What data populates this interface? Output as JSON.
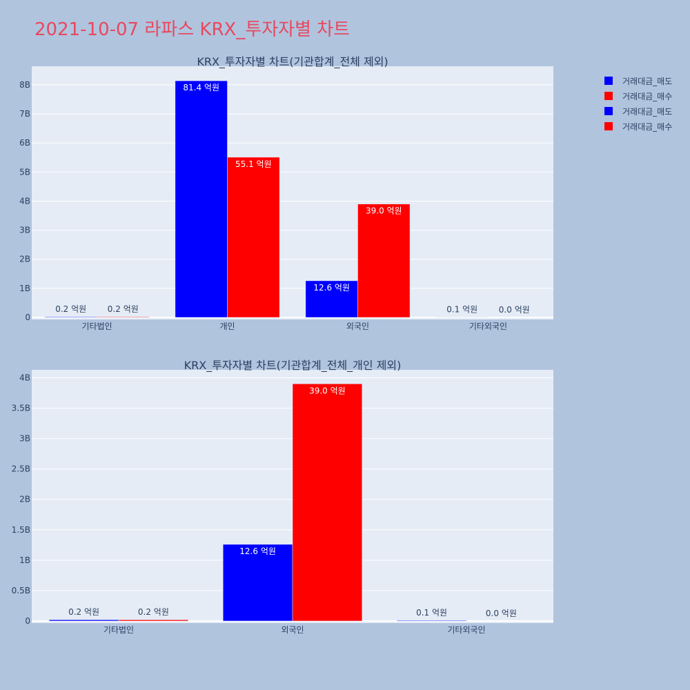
{
  "page_title": "2021-10-07 라파스 KRX_투자자별 차트",
  "colors": {
    "background": "#b0c4de",
    "plot_bg": "#e5ecf6",
    "title": "#e8485f",
    "sell": "#0000ff",
    "buy": "#ff0000",
    "text": "#2a3f5f"
  },
  "legend": [
    {
      "name": "거래대금_매도",
      "color": "#0000ff"
    },
    {
      "name": "거래대금_매수",
      "color": "#ff0000"
    },
    {
      "name": "거래대금_매도",
      "color": "#0000ff"
    },
    {
      "name": "거래대금_매수",
      "color": "#ff0000"
    }
  ],
  "chart_data": [
    {
      "type": "bar",
      "title": "KRX_투자자별 차트(기관합계_전체 제외)",
      "categories": [
        "기타법인",
        "개인",
        "외국인",
        "기타외국인"
      ],
      "ylim": [
        0,
        8640000000
      ],
      "ytick_values": [
        0,
        1000000000,
        2000000000,
        3000000000,
        4000000000,
        5000000000,
        6000000000,
        7000000000,
        8000000000
      ],
      "ytick_labels": [
        "0",
        "1B",
        "2B",
        "3B",
        "4B",
        "5B",
        "6B",
        "7B",
        "8B"
      ],
      "grid": true,
      "series": [
        {
          "name": "거래대금_매도",
          "color": "#0000ff",
          "values": [
            20000000,
            8140000000,
            1260000000,
            10000000
          ],
          "labels": [
            "0.2 억원",
            "81.4 억원",
            "12.6 억원",
            "0.1 억원"
          ]
        },
        {
          "name": "거래대금_매수",
          "color": "#ff0000",
          "values": [
            20000000,
            5510000000,
            3900000000,
            0
          ],
          "labels": [
            "0.2 억원",
            "55.1 억원",
            "39.0 억원",
            "0.0 억원"
          ]
        }
      ]
    },
    {
      "type": "bar",
      "title": "KRX_투자자별 차트(기관합계_전체_개인 제외)",
      "categories": [
        "기타법인",
        "외국인",
        "기타외국인"
      ],
      "ylim": [
        0,
        4130000000
      ],
      "ytick_values": [
        0,
        500000000,
        1000000000,
        1500000000,
        2000000000,
        2500000000,
        3000000000,
        3500000000,
        4000000000
      ],
      "ytick_labels": [
        "0",
        "0.5B",
        "1B",
        "1.5B",
        "2B",
        "2.5B",
        "3B",
        "3.5B",
        "4B"
      ],
      "grid": true,
      "series": [
        {
          "name": "거래대금_매도",
          "color": "#0000ff",
          "values": [
            20000000,
            1260000000,
            10000000
          ],
          "labels": [
            "0.2 억원",
            "12.6 억원",
            "0.1 억원"
          ]
        },
        {
          "name": "거래대금_매수",
          "color": "#ff0000",
          "values": [
            20000000,
            3900000000,
            0
          ],
          "labels": [
            "0.2 억원",
            "39.0 억원",
            "0.0 억원"
          ]
        }
      ]
    }
  ]
}
